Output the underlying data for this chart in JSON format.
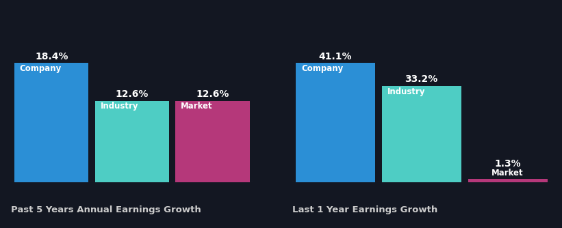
{
  "background_color": "#131722",
  "chart1": {
    "title": "Past 5 Years Annual Earnings Growth",
    "categories": [
      "Company",
      "Industry",
      "Market"
    ],
    "values": [
      18.4,
      12.6,
      12.6
    ],
    "colors": [
      "#2b8fd6",
      "#4ecdc4",
      "#b5387a"
    ]
  },
  "chart2": {
    "title": "Last 1 Year Earnings Growth",
    "categories": [
      "Company",
      "Industry",
      "Market"
    ],
    "values": [
      41.1,
      33.2,
      1.3
    ],
    "colors": [
      "#2b8fd6",
      "#4ecdc4",
      "#b5387a"
    ]
  },
  "label_fontsize": 8.5,
  "value_fontsize": 10,
  "title_fontsize": 9.5,
  "text_color": "#ffffff",
  "title_color": "#cccccc",
  "small_bar_threshold": 4.0
}
